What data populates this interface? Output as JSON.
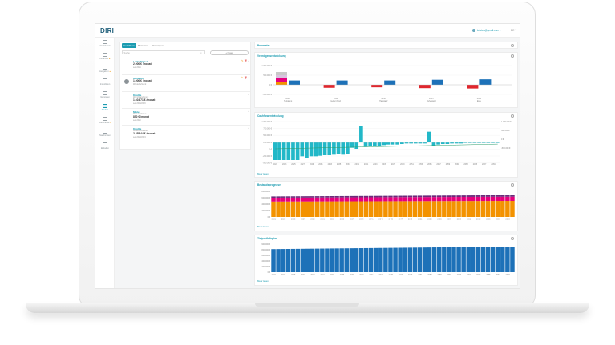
{
  "app": {
    "logo": "DIRI",
    "user": "kristen@gmail.com ▾",
    "lang": "DE ˅"
  },
  "sidebar": {
    "items": [
      {
        "label": "Dashboard",
        "icon": "dashboard-icon"
      },
      {
        "label": "Finanzen",
        "icon": "finance-icon",
        "dot": "●"
      },
      {
        "label": "Ausgaben",
        "icon": "expenses-icon",
        "dot": "●"
      },
      {
        "label": "Immobilien",
        "icon": "real-estate-icon"
      },
      {
        "label": "Vermögen",
        "icon": "assets-icon"
      },
      {
        "label": "Module",
        "icon": "modules-icon",
        "active": true
      },
      {
        "label": "Dokumente",
        "icon": "documents-icon",
        "dot": "●"
      },
      {
        "label": "Nachrichten",
        "icon": "messages-icon"
      },
      {
        "label": "Einladen",
        "icon": "invite-icon"
      }
    ]
  },
  "left": {
    "tabs": [
      "Cashflows",
      "Personen",
      "Vermögen"
    ],
    "search_placeholder": "Suche",
    "new_button": "+ Neuer",
    "items": [
      {
        "title": "Lebhaftigkeit",
        "amount": "2.000 € /monat",
        "date": "seit 2021",
        "sub": "",
        "avatar": false
      },
      {
        "title": "Gehalten",
        "amount": "1.000 € /monat",
        "date": "",
        "sub": "Wiederkehrend",
        "avatar": true
      },
      {
        "title": "Kredite",
        "sub": "Wohnfinanzierung",
        "amount": "1.024,71 € /monat",
        "date": "seit 2019/2020",
        "avatar": false
      },
      {
        "title": "Miete",
        "sub": "Mieteinnahmen",
        "amount": "850 € /monat",
        "date": "seit 2020",
        "avatar": false
      },
      {
        "title": "Kredite",
        "sub": "Kreditrückzahlung",
        "amount": "2.255,44 € /monat",
        "date": "seit 2023/2024",
        "avatar": false
      }
    ]
  },
  "cards": [
    {
      "title": "Parameter"
    },
    {
      "title": "Vermögensentwicklung"
    },
    {
      "title": "Cashflowentwicklung",
      "foot": "Mehr lesen"
    },
    {
      "title": "Bestandsprognose",
      "foot": "Mehr lesen"
    },
    {
      "title": "Zielportfolioplan",
      "foot": "Mehr lesen"
    }
  ],
  "colors": {
    "accent": "#1b9bb0",
    "bar_blue": "#1d71b8",
    "bar_red": "#e0262d",
    "bar_teal": "#22b8c8",
    "orange": "#f39200",
    "purple": "#6b2a7a",
    "pink": "#e5007e"
  },
  "chart_data": [
    {
      "type": "bar",
      "title": "Vermögensentwicklung",
      "yticks": [
        "1.000.000 €",
        "500.000 €",
        "0 €",
        "-500.000 €"
      ],
      "categories": [
        "2021 Heiratung",
        "2024 Geburt Kind",
        "2030 Hauskauf",
        "2035 Ruhestand",
        "2040 Erbe"
      ],
      "series": [
        {
          "values": [
            180000,
            -180000,
            -150000,
            -200000,
            -220000
          ]
        },
        {
          "values": [
            300000,
            300000,
            300000,
            350000,
            380000
          ]
        }
      ]
    },
    {
      "type": "bar",
      "title": "Cashflowentwicklung",
      "yticks_left": [
        "1.000.000 €",
        "750.000 €",
        "500.000 €",
        "250.000 €",
        "0 €",
        "-250.000 €",
        "-500.000 €"
      ],
      "yticks_right": [
        "1.000.000 €",
        "500.000 €",
        "0 €",
        "-500.000 €"
      ],
      "values": [
        -330000,
        -330000,
        -330000,
        -330000,
        -330000,
        -330000,
        -260000,
        -290000,
        -260000,
        -260000,
        -250000,
        -240000,
        -240000,
        -230000,
        -220000,
        -230000,
        -220000,
        -100000,
        -120000,
        300000,
        -80000,
        -70000,
        -60000,
        -60000,
        -50000,
        -40000,
        -40000,
        -40000,
        -30000,
        -20000,
        -20000,
        -20000,
        -20000,
        -20000,
        200000,
        -60000,
        -40000,
        -30000,
        -30000,
        -20000,
        -20000,
        -20000,
        -10000,
        -10000,
        -10000,
        -10000,
        -10000,
        -10000,
        -10000,
        -10000
      ]
    },
    {
      "type": "bar",
      "title": "Bestandsprognose",
      "yticks": [
        "800.000 €",
        "600.000 €",
        "400.000 €",
        "200.000 €",
        "0 €"
      ],
      "series": [
        {
          "values": [
            480000,
            485000,
            490000,
            495000,
            500000
          ]
        },
        {
          "values": [
            120000,
            123000,
            126000,
            129000,
            132000
          ]
        },
        {
          "values": [
            40000,
            42000,
            44000,
            46000,
            48000
          ]
        }
      ]
    },
    {
      "type": "bar",
      "title": "Zielportfolioplan",
      "yticks": [
        "900.000 €",
        "800.000 €",
        "600.000 €",
        "400.000 €",
        "200.000 €",
        "0 €"
      ],
      "values": [
        720000,
        740000,
        760000,
        780000,
        800000
      ]
    }
  ]
}
